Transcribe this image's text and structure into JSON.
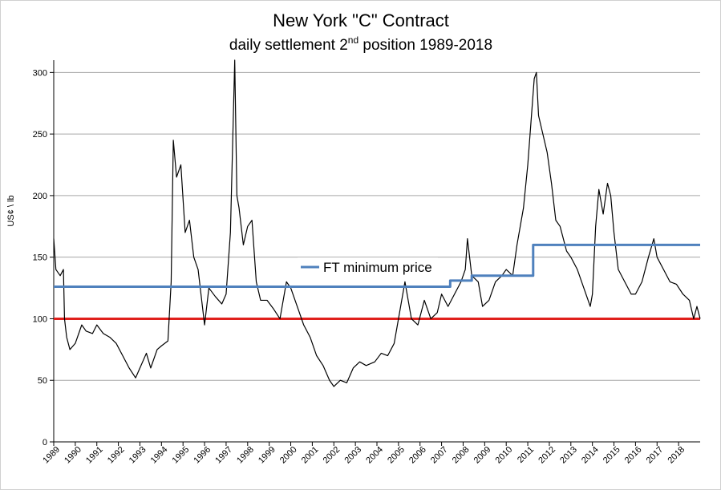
{
  "chart_data": {
    "type": "line",
    "title": "New York \"C\" Contract",
    "subtitle": [
      "daily settlement 2",
      "nd",
      " position 1989-2018"
    ],
    "y_label": "US¢ \\ lb",
    "xlim": [
      1989,
      2019
    ],
    "xticks": [
      1989,
      1990,
      1991,
      1992,
      1993,
      1994,
      1995,
      1996,
      1997,
      1998,
      1999,
      2000,
      2001,
      2002,
      2003,
      2004,
      2005,
      2006,
      2007,
      2008,
      2009,
      2010,
      2011,
      2012,
      2013,
      2014,
      2015,
      2016,
      2017,
      2018
    ],
    "ylim": [
      0,
      310
    ],
    "yticks": [
      0,
      50,
      100,
      150,
      200,
      250,
      300
    ],
    "grid": true,
    "legend": "center",
    "hline": {
      "value": 100,
      "color": "#e0201c"
    },
    "series": [
      {
        "color": "#000000",
        "x": [
          1989.0,
          1989.1,
          1989.3,
          1989.45,
          1989.5,
          1989.6,
          1989.75,
          1990.0,
          1990.3,
          1990.5,
          1990.8,
          1991.0,
          1991.3,
          1991.6,
          1991.9,
          1992.2,
          1992.5,
          1992.8,
          1993.0,
          1993.3,
          1993.5,
          1993.8,
          1994.0,
          1994.3,
          1994.45,
          1994.55,
          1994.7,
          1994.9,
          1995.1,
          1995.3,
          1995.5,
          1995.7,
          1995.9,
          1996.0,
          1996.2,
          1996.5,
          1996.8,
          1997.0,
          1997.2,
          1997.35,
          1997.4,
          1997.5,
          1997.6,
          1997.8,
          1998.0,
          1998.2,
          1998.4,
          1998.6,
          1998.9,
          1999.2,
          1999.5,
          1999.8,
          2000.0,
          2000.3,
          2000.6,
          2000.9,
          2001.2,
          2001.5,
          2001.8,
          2002.0,
          2002.3,
          2002.6,
          2002.9,
          2003.2,
          2003.5,
          2003.9,
          2004.2,
          2004.5,
          2004.8,
          2005.1,
          2005.3,
          2005.6,
          2005.9,
          2006.2,
          2006.5,
          2006.8,
          2007.0,
          2007.3,
          2007.6,
          2007.9,
          2008.1,
          2008.2,
          2008.4,
          2008.7,
          2008.9,
          2009.2,
          2009.5,
          2009.8,
          2010.0,
          2010.3,
          2010.5,
          2010.8,
          2011.0,
          2011.15,
          2011.3,
          2011.4,
          2011.5,
          2011.7,
          2011.9,
          2012.1,
          2012.3,
          2012.5,
          2012.8,
          2013.0,
          2013.3,
          2013.6,
          2013.9,
          2014.0,
          2014.15,
          2014.3,
          2014.5,
          2014.7,
          2014.85,
          2015.0,
          2015.2,
          2015.5,
          2015.8,
          2016.0,
          2016.3,
          2016.6,
          2016.85,
          2017.0,
          2017.3,
          2017.6,
          2017.9,
          2018.2,
          2018.5,
          2018.7,
          2018.85,
          2019.0
        ],
        "values": [
          165,
          140,
          135,
          140,
          100,
          85,
          75,
          80,
          95,
          90,
          88,
          95,
          88,
          85,
          80,
          70,
          60,
          52,
          60,
          72,
          60,
          75,
          78,
          82,
          130,
          245,
          215,
          225,
          170,
          180,
          150,
          140,
          110,
          95,
          125,
          118,
          112,
          120,
          170,
          275,
          310,
          200,
          190,
          160,
          175,
          180,
          130,
          115,
          115,
          108,
          100,
          130,
          125,
          110,
          95,
          85,
          70,
          62,
          50,
          45,
          50,
          48,
          60,
          65,
          62,
          65,
          72,
          70,
          80,
          110,
          130,
          100,
          95,
          115,
          100,
          105,
          120,
          110,
          120,
          130,
          140,
          165,
          135,
          130,
          110,
          115,
          130,
          135,
          140,
          135,
          160,
          190,
          225,
          260,
          295,
          300,
          265,
          250,
          235,
          210,
          180,
          175,
          155,
          150,
          140,
          125,
          110,
          120,
          175,
          205,
          185,
          210,
          200,
          170,
          140,
          130,
          120,
          120,
          130,
          150,
          165,
          150,
          140,
          130,
          128,
          120,
          115,
          100,
          110,
          100
        ]
      },
      {
        "name": "FT minimum price",
        "color": "#4f81bd",
        "x": [
          1989,
          2007.4,
          2007.4,
          2008.4,
          2008.4,
          2011.25,
          2011.25,
          2019
        ],
        "values": [
          126,
          126,
          131,
          131,
          135,
          135,
          160,
          160
        ]
      }
    ]
  }
}
